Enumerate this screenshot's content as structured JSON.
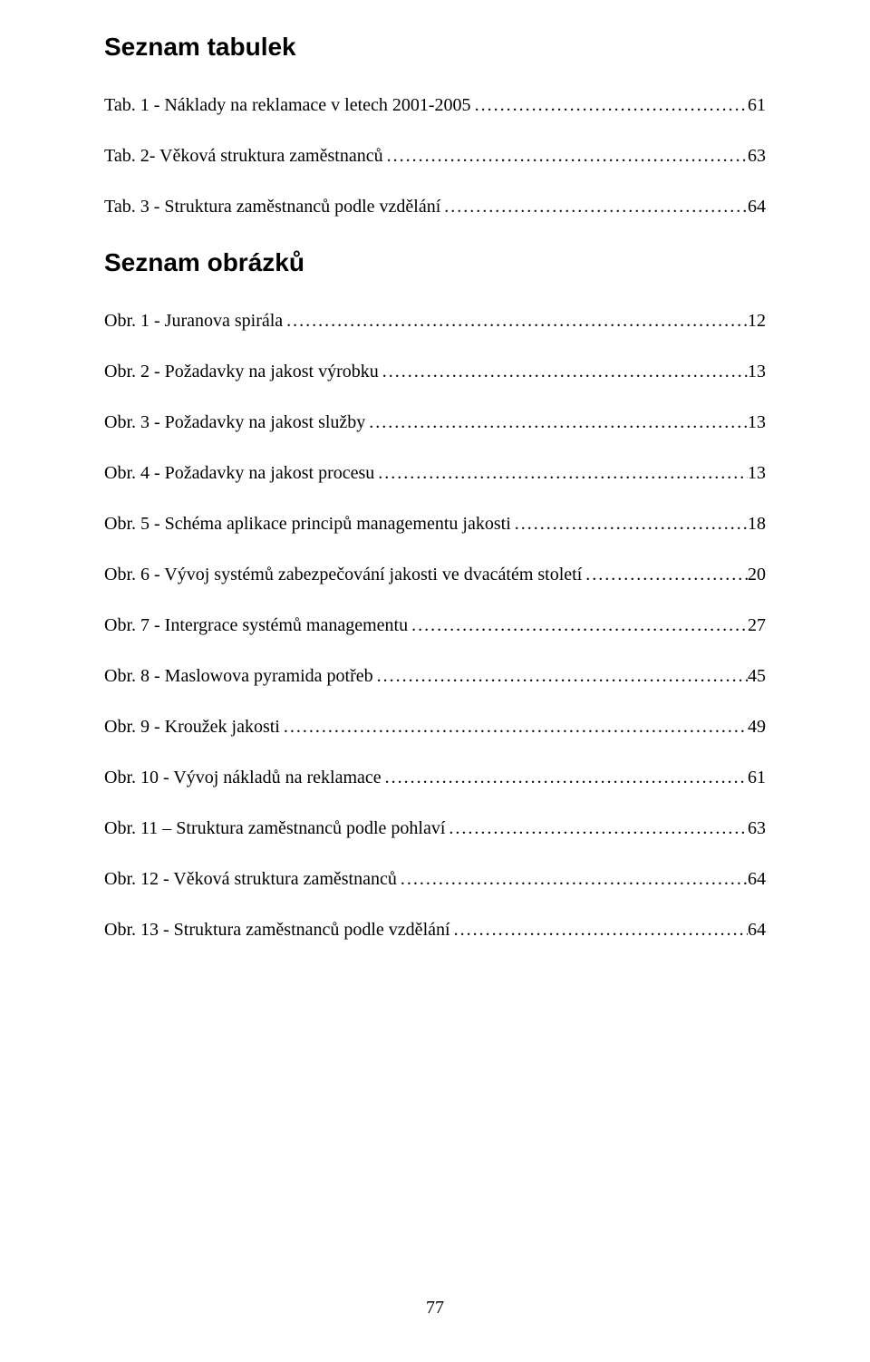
{
  "colors": {
    "background": "#ffffff",
    "text": "#000000"
  },
  "typography": {
    "body_font": "Times New Roman",
    "heading_font": "Arial",
    "heading_fontsize_pt": 21,
    "body_fontsize_pt": 15,
    "heading_weight": "bold"
  },
  "headings": {
    "tables": "Seznam tabulek",
    "figures": "Seznam obrázků"
  },
  "tables_list": [
    {
      "label": "Tab. 1 - Náklady na reklamace v letech 2001-2005",
      "page": "61"
    },
    {
      "label": "Tab. 2- Věková struktura zaměstnanců",
      "page": "63"
    },
    {
      "label": "Tab. 3 - Struktura zaměstnanců podle vzdělání",
      "page": "64"
    }
  ],
  "figures_list": [
    {
      "label": "Obr. 1 - Juranova spirála",
      "page": "12"
    },
    {
      "label": "Obr. 2 - Požadavky na jakost výrobku",
      "page": "13"
    },
    {
      "label": "Obr. 3 - Požadavky na jakost služby",
      "page": "13"
    },
    {
      "label": "Obr. 4 - Požadavky na jakost procesu",
      "page": "13"
    },
    {
      "label": "Obr. 5 - Schéma aplikace principů managementu jakosti",
      "page": "18"
    },
    {
      "label": "Obr. 6 - Vývoj systémů zabezpečování jakosti ve dvacátém století",
      "page": "20"
    },
    {
      "label": "Obr. 7 - Intergrace systémů managementu",
      "page": "27"
    },
    {
      "label": "Obr. 8 - Maslowova pyramida potřeb",
      "page": "45"
    },
    {
      "label": "Obr. 9 - Kroužek jakosti",
      "page": "49"
    },
    {
      "label": "Obr. 10 - Vývoj nákladů na reklamace",
      "page": "61"
    },
    {
      "label": "Obr. 11 – Struktura zaměstnanců podle pohlaví",
      "page": "63"
    },
    {
      "label": "Obr. 12 - Věková struktura zaměstnanců",
      "page": "64"
    },
    {
      "label": "Obr. 13 - Struktura zaměstnanců podle vzdělání",
      "page": "64"
    }
  ],
  "page_number": "77"
}
